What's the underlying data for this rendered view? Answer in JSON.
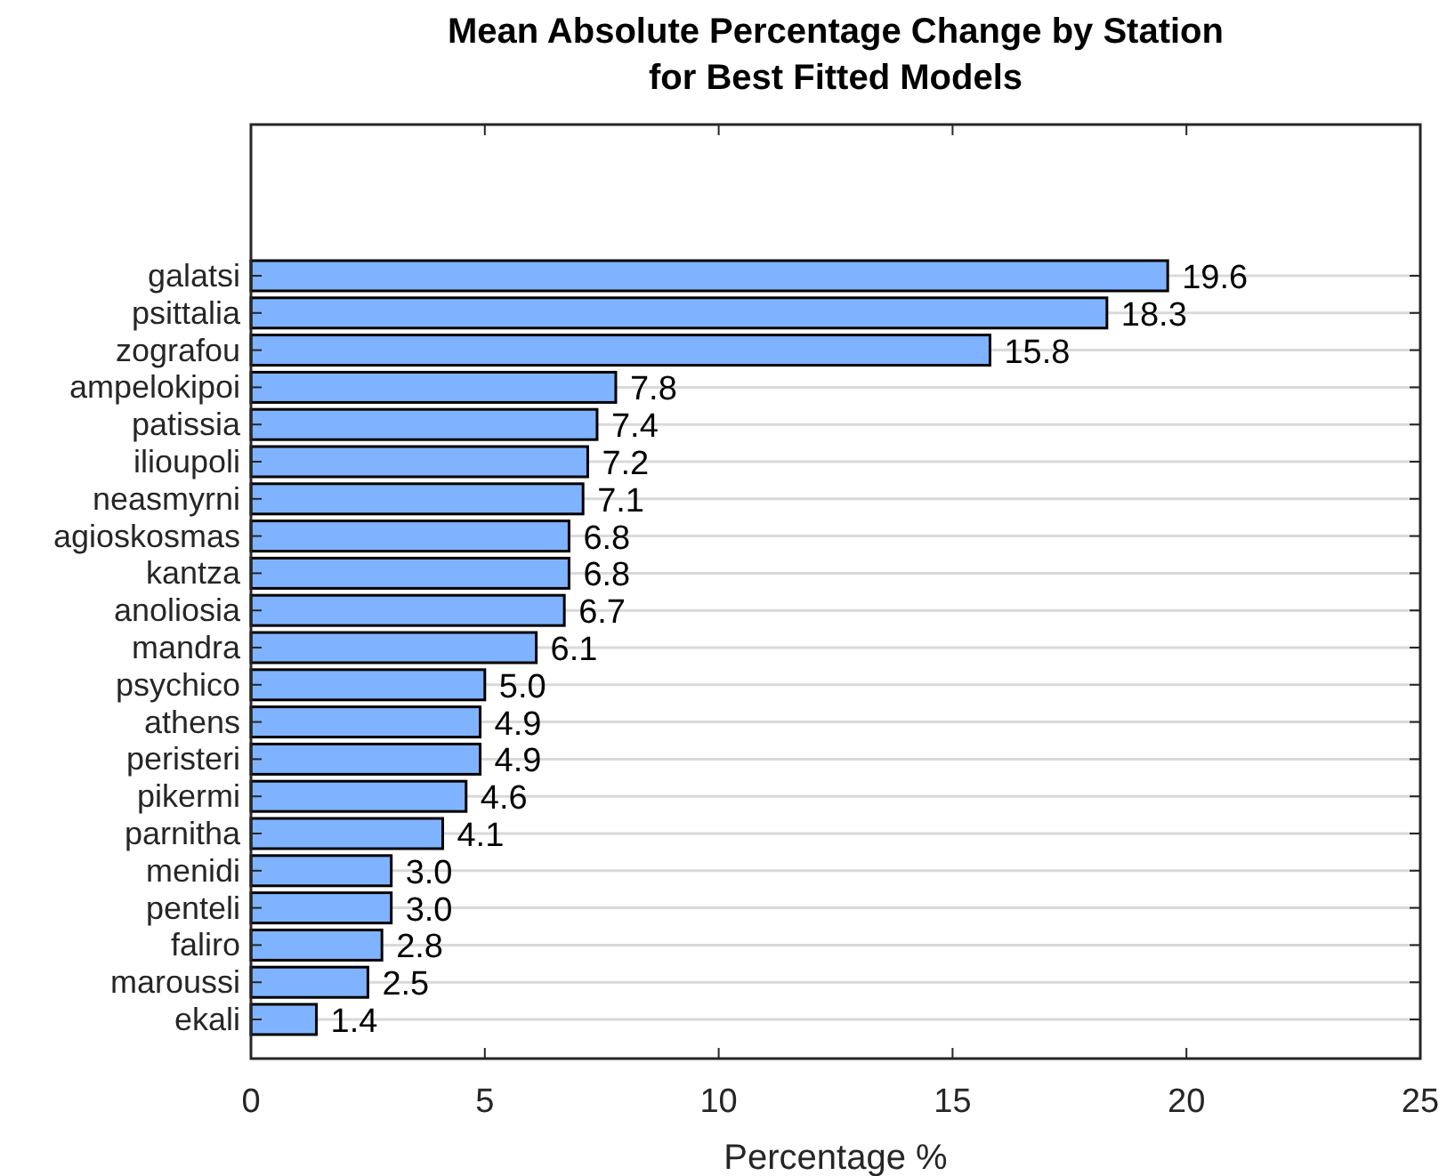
{
  "chart_data": {
    "type": "bar",
    "orientation": "horizontal",
    "title": "Mean Absolute Percentage Change by Station\nfor Best Fitted Models",
    "xlabel": "Percentage %",
    "categories": [
      "galatsi",
      "psittalia",
      "zografou",
      "ampelokipoi",
      "patissia",
      "ilioupoli",
      "neasmyrni",
      "agioskosmas",
      "kantza",
      "anoliosia",
      "mandra",
      "psychico",
      "athens",
      "peristeri",
      "pikermi",
      "parnitha",
      "menidi",
      "penteli",
      "faliro",
      "maroussi",
      "ekali"
    ],
    "values": [
      19.6,
      18.3,
      15.8,
      7.8,
      7.4,
      7.2,
      7.1,
      6.8,
      6.8,
      6.7,
      6.1,
      5.0,
      4.9,
      4.9,
      4.6,
      4.1,
      3.0,
      3.0,
      2.8,
      2.5,
      1.4
    ],
    "value_labels": [
      "19.6",
      "18.3",
      "15.8",
      "7.8",
      "7.4",
      "7.2",
      "7.1",
      "6.8",
      "6.8",
      "6.7",
      "6.1",
      "5.0",
      "4.9",
      "4.9",
      "4.6",
      "4.1",
      "3.0",
      "3.0",
      "2.8",
      "2.5",
      "1.4"
    ],
    "color": "#80b3ff",
    "xlim": [
      0,
      25
    ],
    "xticks": [
      0,
      5,
      10,
      15,
      20,
      25
    ],
    "grid": "y"
  }
}
